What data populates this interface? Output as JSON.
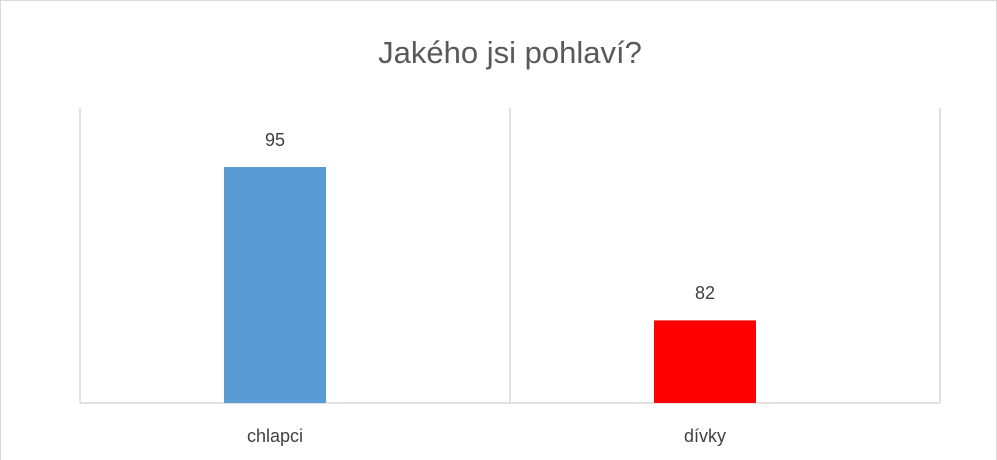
{
  "chart_data": {
    "type": "bar",
    "title": "Jakého jsi pohlaví?",
    "categories": [
      "chlapci",
      "dívky"
    ],
    "values": [
      95,
      82
    ],
    "colors": [
      "#5b9bd5",
      "#ff0000"
    ],
    "ylim": [
      75,
      100
    ],
    "grid": true
  }
}
